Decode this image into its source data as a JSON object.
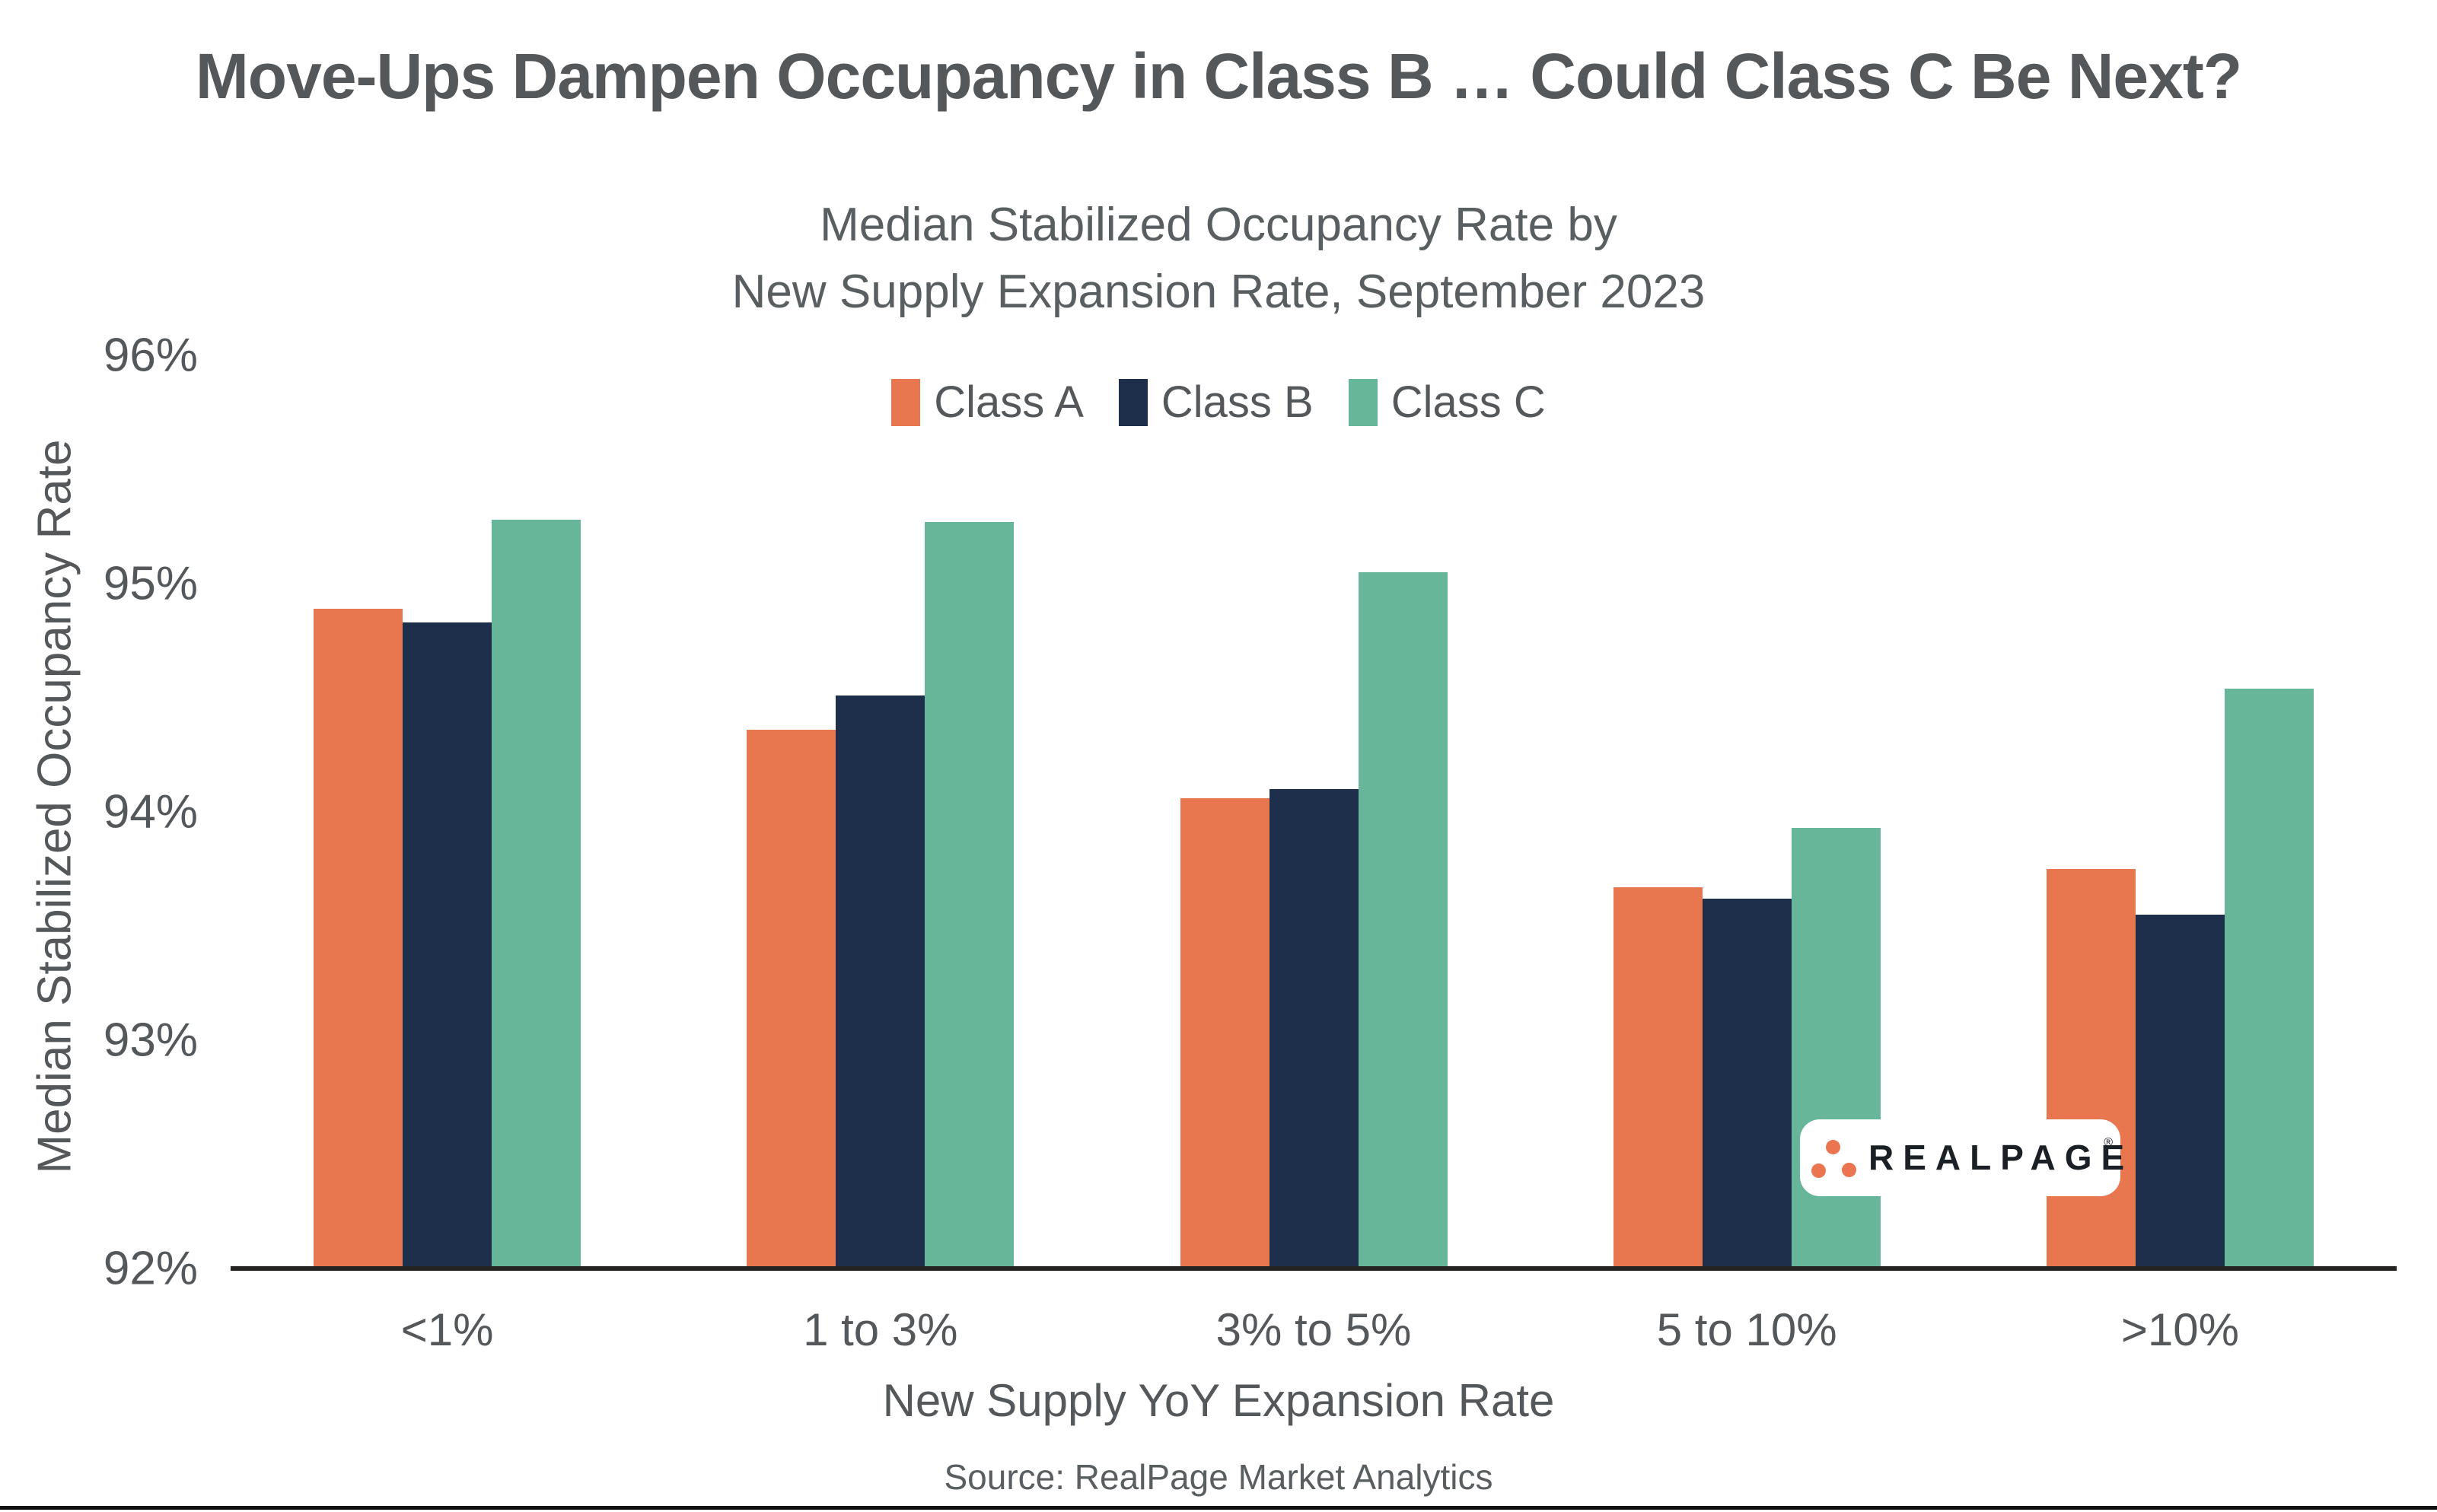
{
  "page": {
    "title": "Move-Ups Dampen Occupancy in Class B … Could Class C Be Next?",
    "subtitle_line1": "Median Stabilized Occupancy Rate by",
    "subtitle_line2": "New Supply Expansion Rate, September 2023",
    "y_axis_title": "Median Stabilized Occupancy Rate",
    "x_axis_title": "New Supply YoY Expansion Rate",
    "source": "Source: RealPage Market Analytics",
    "logo_text": "REALPAGE",
    "logo_reg_mark": "®"
  },
  "colors": {
    "class_a": "#E8764F",
    "class_b": "#1D2F4B",
    "class_c": "#68B69A",
    "title_text": "#54585B",
    "axis_text": "#54585B",
    "axis_line": "#262323",
    "logo_dot": "#EC7551",
    "logo_text": "#1B2026"
  },
  "chart_data": {
    "type": "bar",
    "title": "Median Stabilized Occupancy Rate by New Supply Expansion Rate, September 2023",
    "xlabel": "New Supply YoY Expansion Rate",
    "ylabel": "Median Stabilized Occupancy Rate",
    "categories": [
      "<1%",
      "1 to 3%",
      "3% to 5%",
      "5 to 10%",
      ">10%"
    ],
    "series": [
      {
        "name": "Class A",
        "color": "#E8764F",
        "values": [
          94.89,
          94.36,
          94.06,
          93.67,
          93.75
        ]
      },
      {
        "name": "Class B",
        "color": "#1D2F4B",
        "values": [
          94.83,
          94.51,
          94.1,
          93.62,
          93.55
        ]
      },
      {
        "name": "Class C",
        "color": "#68B69A",
        "values": [
          95.28,
          95.27,
          95.05,
          93.93,
          94.54
        ]
      }
    ],
    "ylim": [
      92,
      96
    ],
    "yticks": [
      92,
      93,
      94,
      95,
      96
    ],
    "ytick_suffix": "%",
    "grid": false,
    "legend_position": "top"
  }
}
